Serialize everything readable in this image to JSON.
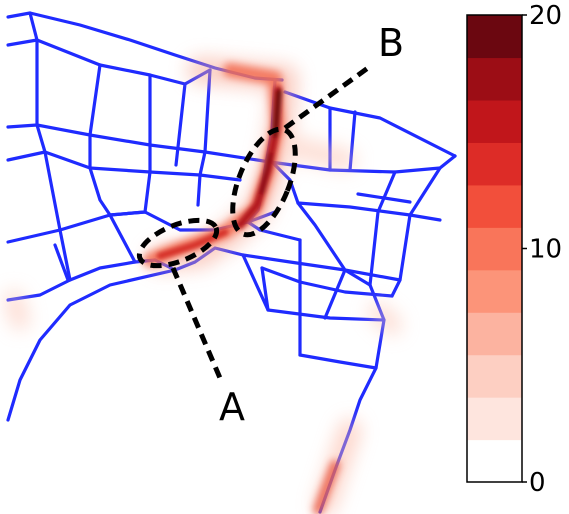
{
  "callouts": [
    {
      "label": "A"
    },
    {
      "label": "B"
    }
  ],
  "colorbar": {
    "min": 0,
    "max": 20,
    "ticks": [
      {
        "value": 20,
        "label": "20"
      },
      {
        "value": 10,
        "label": "10"
      },
      {
        "value": 0,
        "label": "0"
      }
    ],
    "bands": [
      "#ffffff",
      "#fee5de",
      "#fdcfc2",
      "#fcb3a0",
      "#fc9479",
      "#f9755a",
      "#f24f3b",
      "#dd2c27",
      "#c1161b",
      "#9c0d15",
      "#6b0710"
    ]
  },
  "colors": {
    "road": "#1f2bff",
    "callout": "#000000",
    "heat_low": "#f7a692",
    "heat_high": "#6b0710"
  }
}
